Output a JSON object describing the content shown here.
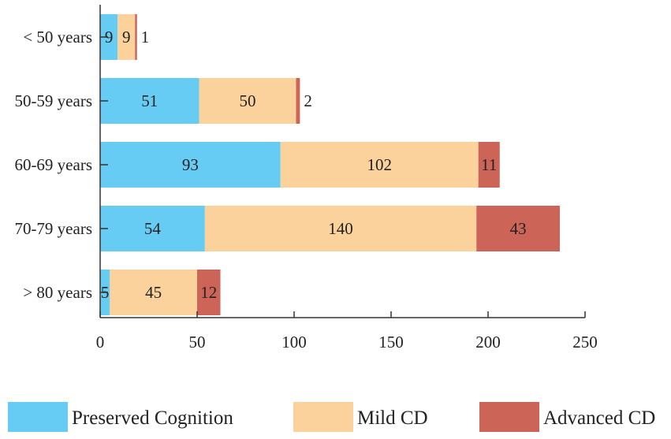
{
  "chart_data": {
    "type": "bar",
    "orientation": "horizontal",
    "stacked": true,
    "title": "",
    "xlabel": "",
    "ylabel": "",
    "xlim": [
      0,
      250
    ],
    "x_ticks": [
      0,
      50,
      100,
      150,
      200,
      250
    ],
    "categories": [
      "< 50 years",
      "50-59 years",
      "60-69 years",
      "70-79 years",
      "> 80 years"
    ],
    "series": [
      {
        "name": "Preserved Cognition",
        "color": "#66ccf3",
        "values": [
          9,
          51,
          93,
          54,
          5
        ]
      },
      {
        "name": "Mild CD",
        "color": "#fbd29b",
        "values": [
          9,
          50,
          102,
          140,
          45
        ]
      },
      {
        "name": "Advanced CD",
        "color": "#cc6557",
        "values": [
          1,
          2,
          11,
          43,
          12
        ]
      }
    ],
    "grid": false,
    "legend_position": "bottom"
  }
}
